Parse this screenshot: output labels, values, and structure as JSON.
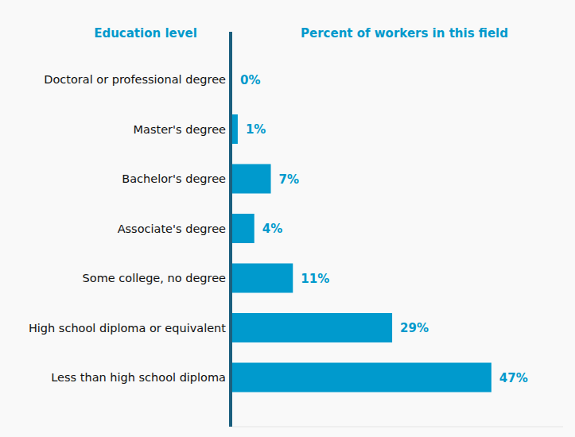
{
  "chart_data": {
    "type": "bar",
    "orientation": "horizontal",
    "ylabel": "Education level",
    "xlabel": "Percent of workers in this field",
    "categories": [
      "Doctoral or professional degree",
      "Master's degree",
      "Bachelor's degree",
      "Associate's degree",
      "Some college, no degree",
      "High school diploma or equivalent",
      "Less than high school diploma"
    ],
    "values": [
      0,
      1,
      7,
      4,
      11,
      29,
      47
    ],
    "value_labels": [
      "0%",
      "1%",
      "7%",
      "4%",
      "11%",
      "29%",
      "47%"
    ],
    "color": "#009acd",
    "xlim": [
      0,
      60
    ],
    "grid": false,
    "data_labels": true,
    "tick_labels": "y"
  }
}
